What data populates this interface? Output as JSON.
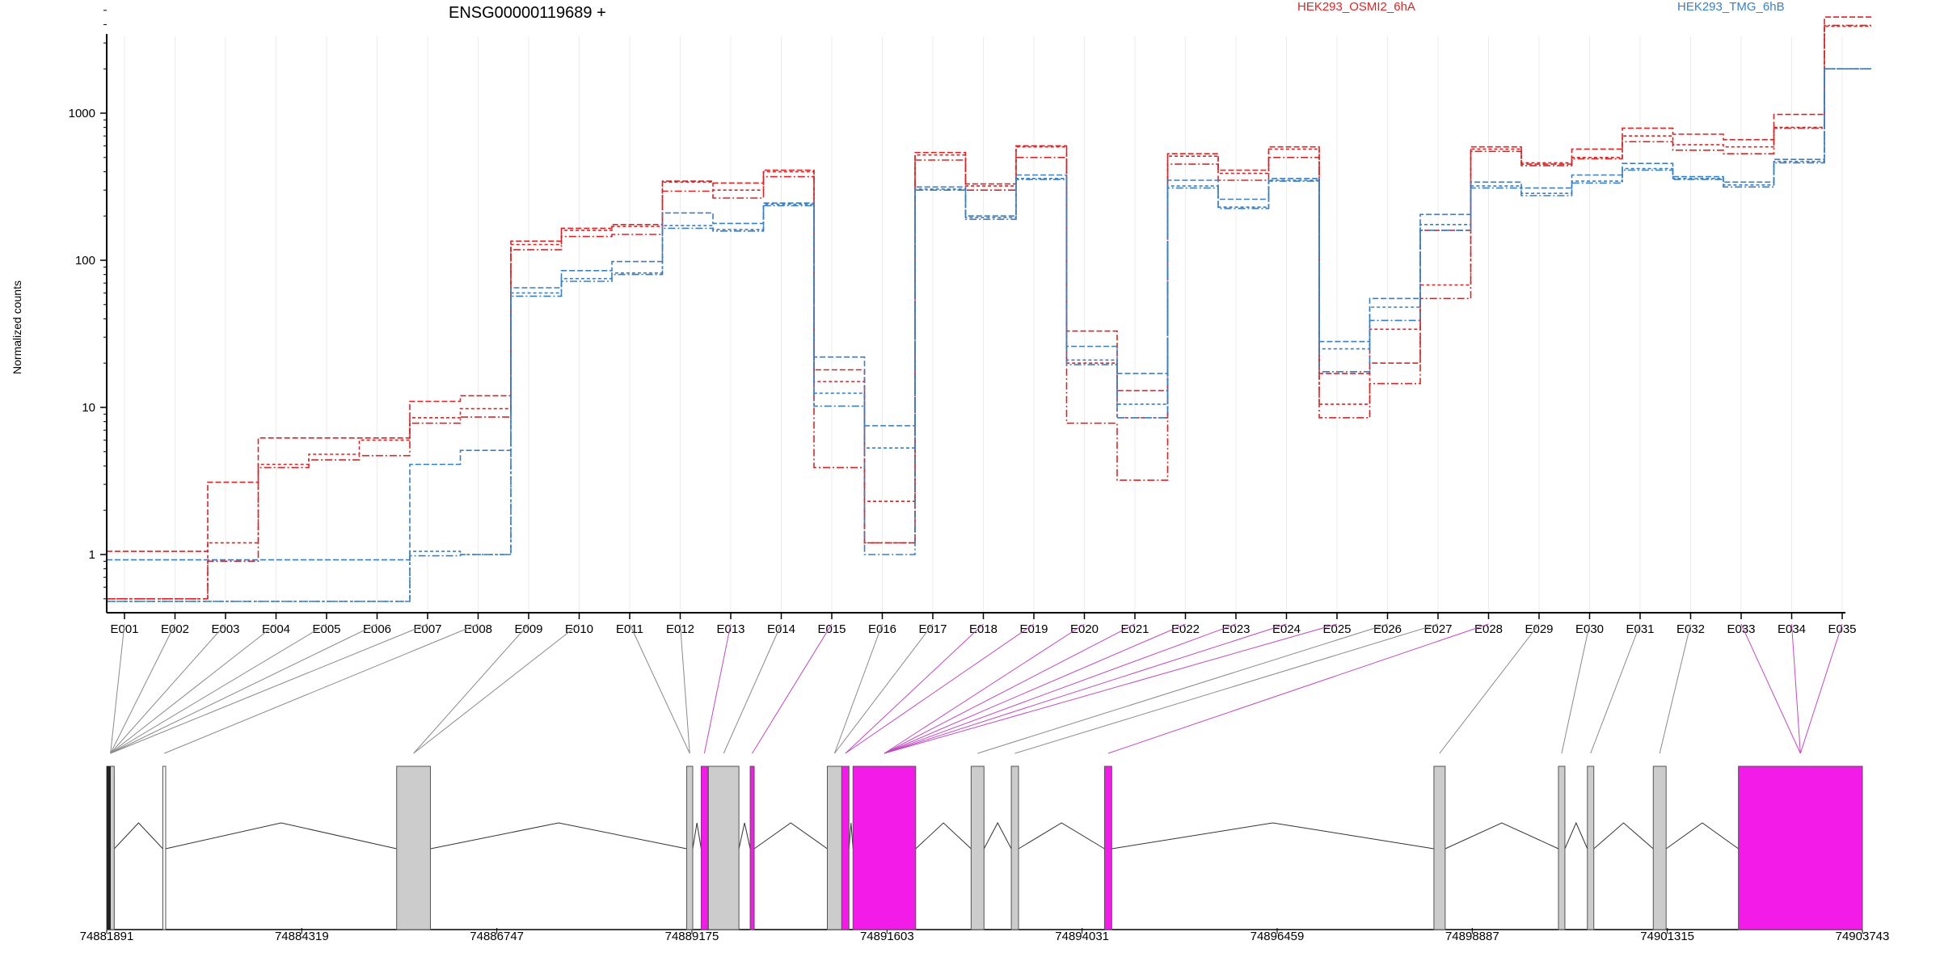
{
  "chart_data": {
    "type": "line",
    "title": "ENSG00000119689 +",
    "ylabel": "Normalized counts",
    "yscale": "log",
    "ylim": [
      0.5,
      6000
    ],
    "yticks": [
      1,
      10,
      100,
      1000
    ],
    "ytick_labels": [
      "1",
      "10",
      "100",
      "1000"
    ],
    "categories": [
      "E001",
      "E002",
      "E003",
      "E004",
      "E005",
      "E006",
      "E007",
      "E008",
      "E009",
      "E010",
      "E011",
      "E012",
      "E013",
      "E014",
      "E015",
      "E016",
      "E017",
      "E018",
      "E019",
      "E020",
      "E021",
      "E022",
      "E023",
      "E024",
      "E025",
      "E026",
      "E027",
      "E028",
      "E029",
      "E030",
      "E031",
      "E032",
      "E033",
      "E034",
      "E035"
    ],
    "legend": [
      {
        "name": "HEK293_OSMI2_6hA",
        "color": "#d62728"
      },
      {
        "name": "HEK293_TMG_6hB",
        "color": "#3b7fbf"
      }
    ],
    "series": [
      {
        "group": "HEK293_OSMI2_6hA",
        "values": [
          1.05,
          1.05,
          3.1,
          6.2,
          6.2,
          6.2,
          11,
          12,
          135,
          165,
          175,
          345,
          335,
          410,
          18,
          1.2,
          540,
          330,
          600,
          33,
          13,
          530,
          410,
          590,
          17,
          20,
          160,
          590,
          450,
          570,
          790,
          720,
          660,
          980,
          4500
        ]
      },
      {
        "group": "HEK293_OSMI2_6hA",
        "values": [
          0.5,
          0.5,
          1.2,
          4.1,
          4.8,
          6.0,
          8.5,
          9.8,
          128,
          160,
          170,
          340,
          300,
          400,
          15,
          2.3,
          520,
          320,
          590,
          20,
          8.5,
          510,
          390,
          570,
          10.5,
          34,
          68,
          570,
          460,
          500,
          700,
          610,
          590,
          800,
          3900
        ]
      },
      {
        "group": "HEK293_OSMI2_6hA",
        "values": [
          0.5,
          0.5,
          0.9,
          3.9,
          4.4,
          4.7,
          7.8,
          8.6,
          118,
          145,
          150,
          295,
          265,
          370,
          3.9,
          1.2,
          480,
          300,
          500,
          7.8,
          3.2,
          450,
          350,
          500,
          8.5,
          14.5,
          55,
          550,
          440,
          490,
          640,
          560,
          530,
          790,
          3950
        ]
      },
      {
        "group": "HEK293_TMG_6hB",
        "values": [
          0.92,
          0.92,
          0.92,
          0.92,
          0.92,
          0.92,
          4.1,
          5.1,
          65,
          85,
          98,
          210,
          178,
          245,
          22,
          7.5,
          315,
          200,
          380,
          26,
          17,
          350,
          260,
          360,
          28,
          55,
          205,
          340,
          310,
          380,
          455,
          370,
          340,
          485,
          2000
        ]
      },
      {
        "group": "HEK293_TMG_6hB",
        "values": [
          0.48,
          0.48,
          0.48,
          0.48,
          0.48,
          0.48,
          1.05,
          1.0,
          60,
          75,
          82,
          172,
          162,
          240,
          12.5,
          5.3,
          305,
          195,
          360,
          21,
          10.5,
          320,
          230,
          350,
          25,
          48,
          175,
          320,
          285,
          345,
          420,
          360,
          325,
          470,
          2000
        ]
      },
      {
        "group": "HEK293_TMG_6hB",
        "values": [
          0.48,
          0.48,
          0.48,
          0.48,
          0.48,
          0.48,
          0.98,
          1.0,
          57,
          72,
          80,
          165,
          158,
          235,
          10.2,
          1.0,
          300,
          190,
          355,
          19.5,
          8.5,
          310,
          225,
          345,
          17.5,
          39,
          160,
          310,
          275,
          335,
          410,
          355,
          315,
          460,
          2000
        ]
      }
    ],
    "gene_model": {
      "coordinate_labels": [
        "74881891",
        "74884319",
        "74886747",
        "74889175",
        "74891603",
        "74894031",
        "74896459",
        "74898887",
        "74901315",
        "74903743"
      ],
      "coord_start": 74881891,
      "coord_end": 74903743,
      "exons": [
        {
          "start": 74881891,
          "end": 74881985,
          "color": "#cccccc"
        },
        {
          "start": 74882590,
          "end": 74882625,
          "color": "#ffffff"
        },
        {
          "start": 74885500,
          "end": 74885920,
          "color": "#cccccc"
        },
        {
          "start": 74889110,
          "end": 74889185,
          "color": "#cccccc"
        },
        {
          "start": 74889290,
          "end": 74889370,
          "color": "#f21be7"
        },
        {
          "start": 74889380,
          "end": 74889760,
          "color": "#cccccc"
        },
        {
          "start": 74889900,
          "end": 74889950,
          "color": "#f21be7"
        },
        {
          "start": 74890860,
          "end": 74891040,
          "color": "#cccccc"
        },
        {
          "start": 74891040,
          "end": 74891130,
          "color": "#f21be7"
        },
        {
          "start": 74891180,
          "end": 74891960,
          "color": "#f21be7"
        },
        {
          "start": 74892650,
          "end": 74892810,
          "color": "#cccccc"
        },
        {
          "start": 74893150,
          "end": 74893240,
          "color": "#cccccc"
        },
        {
          "start": 74894310,
          "end": 74894400,
          "color": "#f21be7"
        },
        {
          "start": 74898410,
          "end": 74898550,
          "color": "#cccccc"
        },
        {
          "start": 74899960,
          "end": 74900040,
          "color": "#cccccc"
        },
        {
          "start": 74900320,
          "end": 74900400,
          "color": "#cccccc"
        },
        {
          "start": 74901140,
          "end": 74901300,
          "color": "#cccccc"
        },
        {
          "start": 74902200,
          "end": 74903743,
          "color": "#f21be7"
        }
      ]
    }
  }
}
